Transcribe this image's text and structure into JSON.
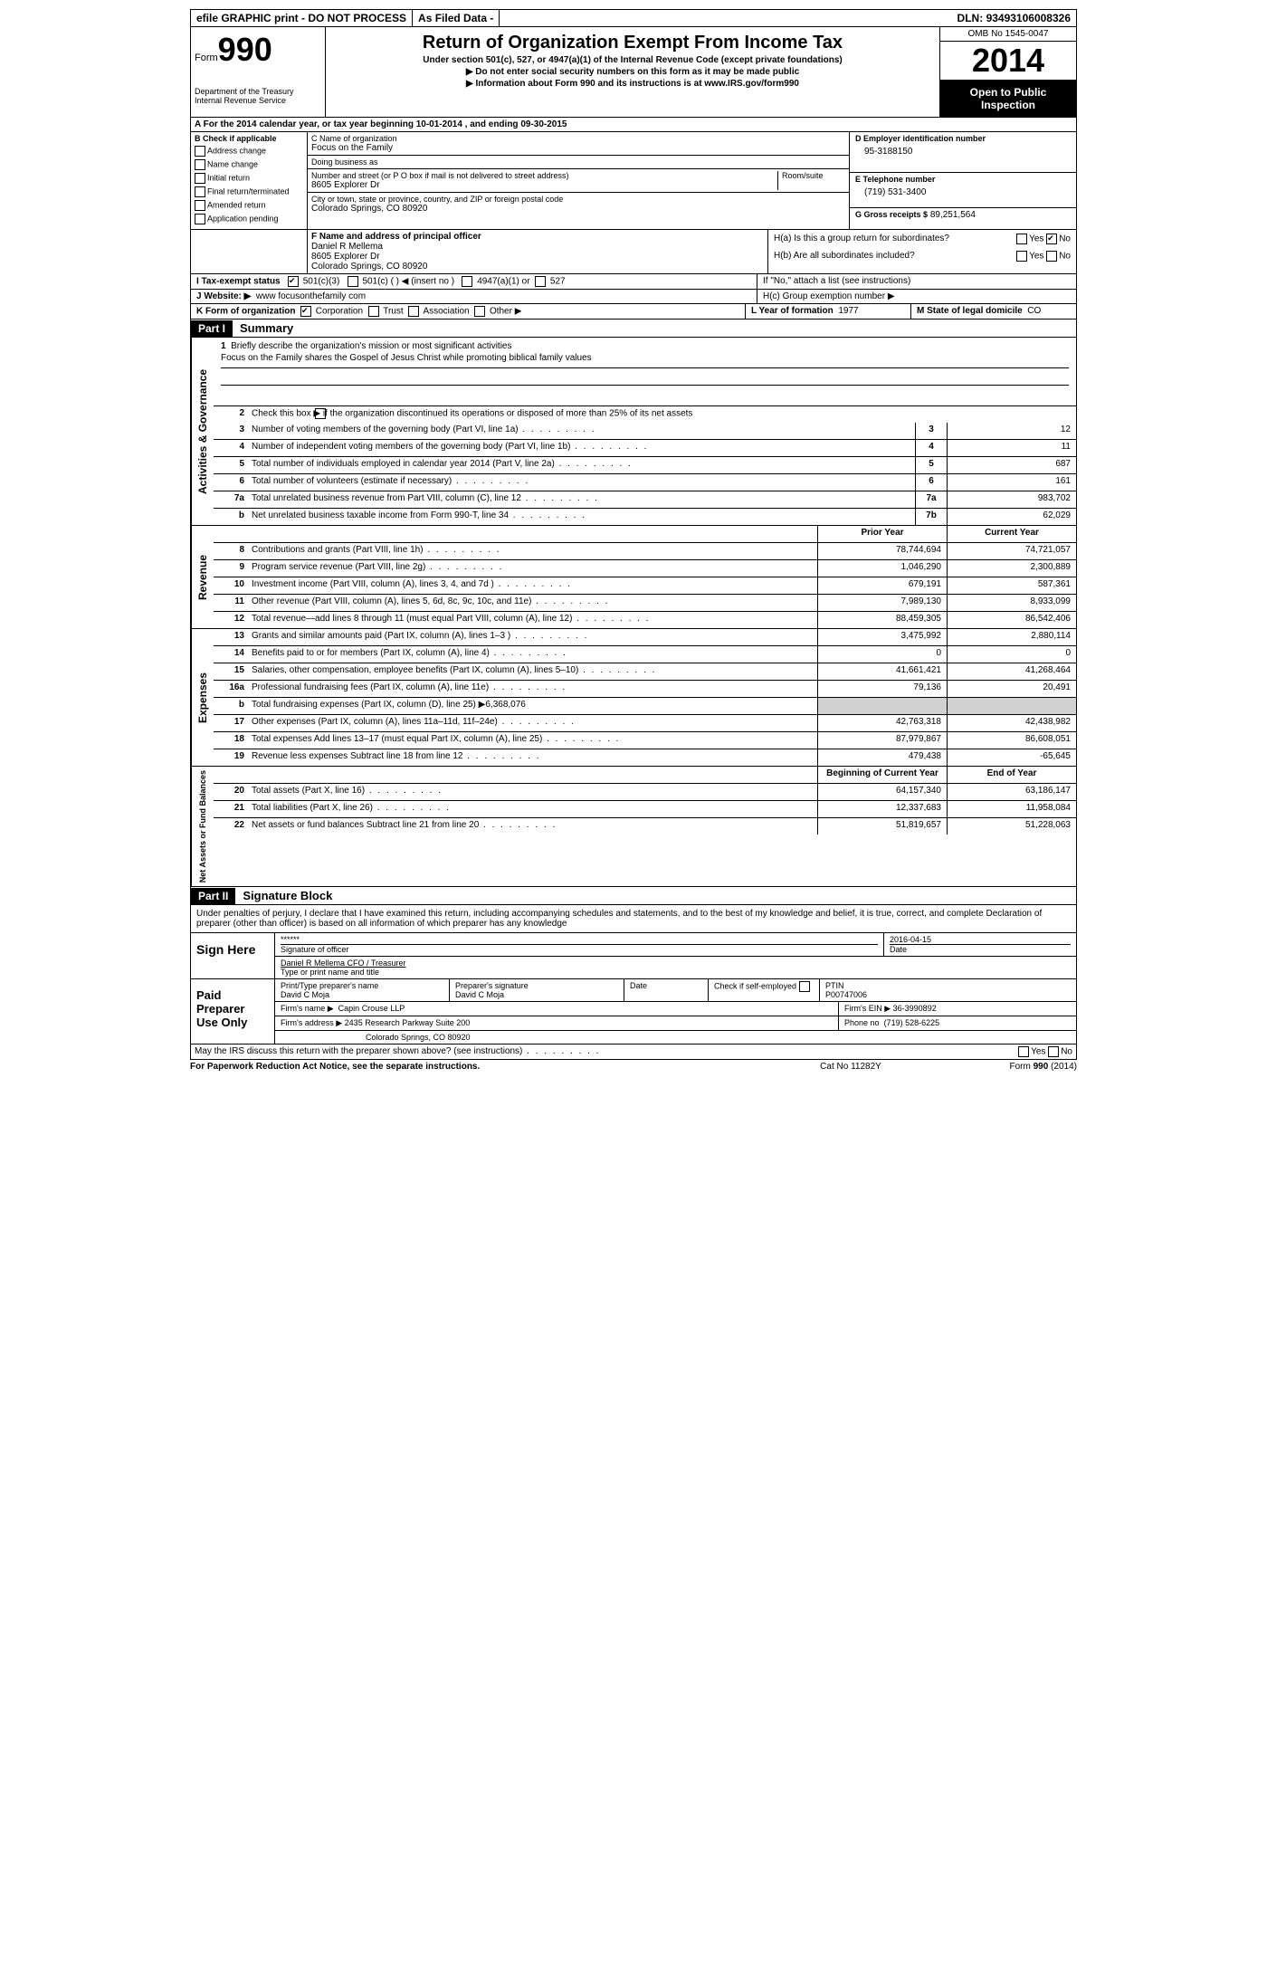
{
  "topbar": {
    "efile": "efile GRAPHIC print - DO NOT PROCESS",
    "asfiled": "As Filed Data -",
    "dln_label": "DLN:",
    "dln": "93493106008326"
  },
  "header": {
    "form_label": "Form",
    "form_number": "990",
    "dept": "Department of the Treasury",
    "irs": "Internal Revenue Service",
    "title": "Return of Organization Exempt From Income Tax",
    "subtitle": "Under section 501(c), 527, or 4947(a)(1) of the Internal Revenue Code (except private foundations)",
    "note1": "▶ Do not enter social security numbers on this form as it may be made public",
    "note2_prefix": "▶ Information about Form 990 and its instructions is at ",
    "note2_link": "www.IRS.gov/form990",
    "omb": "OMB No 1545-0047",
    "year": "2014",
    "open": "Open to Public Inspection"
  },
  "section_a": {
    "text": "A  For the 2014 calendar year, or tax year beginning 10-01-2014    , and ending 09-30-2015"
  },
  "section_b": {
    "label": "B Check if applicable",
    "items": [
      "Address change",
      "Name change",
      "Initial return",
      "Final return/terminated",
      "Amended return",
      "Application pending"
    ]
  },
  "section_c": {
    "name_label": "C Name of organization",
    "name": "Focus on the Family",
    "dba_label": "Doing business as",
    "dba": "",
    "addr_label": "Number and street (or P O  box if mail is not delivered to street address)",
    "room_label": "Room/suite",
    "addr": "8605 Explorer Dr",
    "city_label": "City or town, state or province, country, and ZIP or foreign postal code",
    "city": "Colorado Springs, CO  80920"
  },
  "section_d": {
    "label": "D Employer identification number",
    "value": "95-3188150"
  },
  "section_e": {
    "label": "E Telephone number",
    "value": "(719) 531-3400"
  },
  "section_g": {
    "label": "G Gross receipts $",
    "value": "89,251,564"
  },
  "section_f": {
    "label": "F   Name and address of principal officer",
    "name": "Daniel R Mellema",
    "addr1": "8605 Explorer Dr",
    "addr2": "Colorado Springs, CO  80920"
  },
  "section_h": {
    "a": "H(a)  Is this a group return for subordinates?",
    "b": "H(b)  Are all subordinates included?",
    "b_note": "If \"No,\" attach a list  (see instructions)",
    "c": "H(c)   Group exemption number ▶",
    "yes": "Yes",
    "no": "No"
  },
  "section_i": {
    "label": "I   Tax-exempt status",
    "opt1": "501(c)(3)",
    "opt2": "501(c) (  ) ◀ (insert no )",
    "opt3": "4947(a)(1) or",
    "opt4": "527"
  },
  "section_j": {
    "label": "J   Website: ▶",
    "value": "www focusonthefamily com"
  },
  "section_k": {
    "label": "K Form of organization",
    "opts": [
      "Corporation",
      "Trust",
      "Association",
      "Other ▶"
    ]
  },
  "section_l": {
    "label": "L Year of formation",
    "value": "1977"
  },
  "section_m": {
    "label": "M State of legal domicile",
    "value": "CO"
  },
  "part1": {
    "label": "Part I",
    "title": "Summary"
  },
  "governance": {
    "label": "Activities & Governance",
    "line1_num": "1",
    "line1": "Briefly describe the organization's mission or most significant activities",
    "line1_val": "Focus on the Family shares the Gospel of Jesus Christ while promoting biblical family values",
    "line2_num": "2",
    "line2": "Check this box ▶      if the organization discontinued its operations or disposed of more than 25% of its net assets",
    "rows": [
      {
        "num": "3",
        "desc": "Number of voting members of the governing body (Part VI, line 1a)",
        "box": "3",
        "val": "12"
      },
      {
        "num": "4",
        "desc": "Number of independent voting members of the governing body (Part VI, line 1b)",
        "box": "4",
        "val": "11"
      },
      {
        "num": "5",
        "desc": "Total number of individuals employed in calendar year 2014 (Part V, line 2a)",
        "box": "5",
        "val": "687"
      },
      {
        "num": "6",
        "desc": "Total number of volunteers (estimate if necessary)",
        "box": "6",
        "val": "161"
      },
      {
        "num": "7a",
        "desc": "Total unrelated business revenue from Part VIII, column (C), line 12",
        "box": "7a",
        "val": "983,702"
      },
      {
        "num": "b",
        "desc": "Net unrelated business taxable income from Form 990-T, line 34",
        "box": "7b",
        "val": "62,029"
      }
    ]
  },
  "revenue": {
    "label": "Revenue",
    "header_prior": "Prior Year",
    "header_current": "Current Year",
    "rows": [
      {
        "num": "8",
        "desc": "Contributions and grants (Part VIII, line 1h)",
        "prior": "78,744,694",
        "current": "74,721,057"
      },
      {
        "num": "9",
        "desc": "Program service revenue (Part VIII, line 2g)",
        "prior": "1,046,290",
        "current": "2,300,889"
      },
      {
        "num": "10",
        "desc": "Investment income (Part VIII, column (A), lines 3, 4, and 7d )",
        "prior": "679,191",
        "current": "587,361"
      },
      {
        "num": "11",
        "desc": "Other revenue (Part VIII, column (A), lines 5, 6d, 8c, 9c, 10c, and 11e)",
        "prior": "7,989,130",
        "current": "8,933,099"
      },
      {
        "num": "12",
        "desc": "Total revenue—add lines 8 through 11 (must equal Part VIII, column (A), line 12)",
        "prior": "88,459,305",
        "current": "86,542,406"
      }
    ]
  },
  "expenses": {
    "label": "Expenses",
    "rows": [
      {
        "num": "13",
        "desc": "Grants and similar amounts paid (Part IX, column (A), lines 1–3 )",
        "prior": "3,475,992",
        "current": "2,880,114"
      },
      {
        "num": "14",
        "desc": "Benefits paid to or for members (Part IX, column (A), line 4)",
        "prior": "0",
        "current": "0"
      },
      {
        "num": "15",
        "desc": "Salaries, other compensation, employee benefits (Part IX, column (A), lines 5–10)",
        "prior": "41,661,421",
        "current": "41,268,464"
      },
      {
        "num": "16a",
        "desc": "Professional fundraising fees (Part IX, column (A), line 11e)",
        "prior": "79,136",
        "current": "20,491"
      },
      {
        "num": "b",
        "desc": "Total fundraising expenses (Part IX, column (D), line 25) ▶6,368,076",
        "prior": "",
        "current": "",
        "shaded": true
      },
      {
        "num": "17",
        "desc": "Other expenses (Part IX, column (A), lines 11a–11d, 11f–24e)",
        "prior": "42,763,318",
        "current": "42,438,982"
      },
      {
        "num": "18",
        "desc": "Total expenses  Add lines 13–17 (must equal Part IX, column (A), line 25)",
        "prior": "87,979,867",
        "current": "86,608,051"
      },
      {
        "num": "19",
        "desc": "Revenue less expenses  Subtract line 18 from line 12",
        "prior": "479,438",
        "current": "-65,645"
      }
    ]
  },
  "netassets": {
    "label": "Net Assets or Fund Balances",
    "header_prior": "Beginning of Current Year",
    "header_current": "End of Year",
    "rows": [
      {
        "num": "20",
        "desc": "Total assets (Part X, line 16)",
        "prior": "64,157,340",
        "current": "63,186,147"
      },
      {
        "num": "21",
        "desc": "Total liabilities (Part X, line 26)",
        "prior": "12,337,683",
        "current": "11,958,084"
      },
      {
        "num": "22",
        "desc": "Net assets or fund balances  Subtract line 21 from line 20",
        "prior": "51,819,657",
        "current": "51,228,063"
      }
    ]
  },
  "part2": {
    "label": "Part II",
    "title": "Signature Block",
    "perjury": "Under penalties of perjury, I declare that I have examined this return, including accompanying schedules and statements, and to the best of my knowledge and belief, it is true, correct, and complete  Declaration of preparer (other than officer) is based on all information of which preparer has any knowledge"
  },
  "sign": {
    "label": "Sign Here",
    "sig_stars": "******",
    "sig_label": "Signature of officer",
    "date": "2016-04-15",
    "date_label": "Date",
    "name": "Daniel R Mellema CFO / Treasurer",
    "name_label": "Type or print name and title"
  },
  "preparer": {
    "label": "Paid Preparer Use Only",
    "name_label": "Print/Type preparer's name",
    "name": "David C Moja",
    "sig_label": "Preparer's signature",
    "sig": "David C Moja",
    "date_label": "Date",
    "check_label": "Check       if self-employed",
    "ptin_label": "PTIN",
    "ptin": "P00747006",
    "firm_label": "Firm's name    ▶",
    "firm": "Capin Crouse LLP",
    "ein_label": "Firm's EIN ▶",
    "ein": "36-3990892",
    "addr_label": "Firm's address ▶",
    "addr1": "2435 Research Parkway Suite 200",
    "addr2": "Colorado Springs, CO  80920",
    "phone_label": "Phone no",
    "phone": "(719) 528-6225"
  },
  "footer": {
    "discuss": "May the IRS discuss this return with the preparer shown above? (see instructions)",
    "yes": "Yes",
    "no": "No",
    "paperwork": "For Paperwork Reduction Act Notice, see the separate instructions.",
    "catno": "Cat No  11282Y",
    "formno": "Form 990 (2014)"
  }
}
